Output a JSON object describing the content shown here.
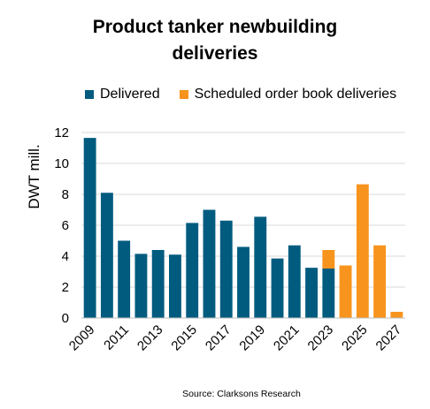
{
  "chart_data": {
    "type": "bar",
    "title_lines": [
      "Product tanker newbuilding",
      "deliveries"
    ],
    "ylabel": "DWT mill.",
    "xlabel": "",
    "source": "Source: Clarksons Research",
    "ylim": [
      0,
      12
    ],
    "yticks": [
      0,
      2,
      4,
      6,
      8,
      10,
      12
    ],
    "grid": true,
    "legend_position": "top",
    "categories": [
      "2009",
      "2010",
      "2011",
      "2012",
      "2013",
      "2014",
      "2015",
      "2016",
      "2017",
      "2018",
      "2019",
      "2020",
      "2021",
      "2022",
      "2023",
      "2024",
      "2025",
      "2026",
      "2027"
    ],
    "xtick_labels": [
      "2009",
      "2011",
      "2013",
      "2015",
      "2017",
      "2019",
      "2021",
      "2023",
      "2025",
      "2027"
    ],
    "series": [
      {
        "name": "Delivered",
        "color": "#005b7f",
        "values": [
          11.65,
          8.1,
          5.0,
          4.15,
          4.4,
          4.1,
          6.15,
          7.0,
          6.3,
          4.6,
          6.55,
          3.85,
          4.7,
          3.25,
          3.2,
          0,
          0,
          0,
          0
        ]
      },
      {
        "name": "Scheduled order book deliveries",
        "color": "#f7941d",
        "values": [
          0,
          0,
          0,
          0,
          0,
          0,
          0,
          0,
          0,
          0,
          0,
          0,
          0,
          0,
          1.2,
          3.4,
          8.65,
          4.7,
          0.4
        ]
      }
    ]
  }
}
